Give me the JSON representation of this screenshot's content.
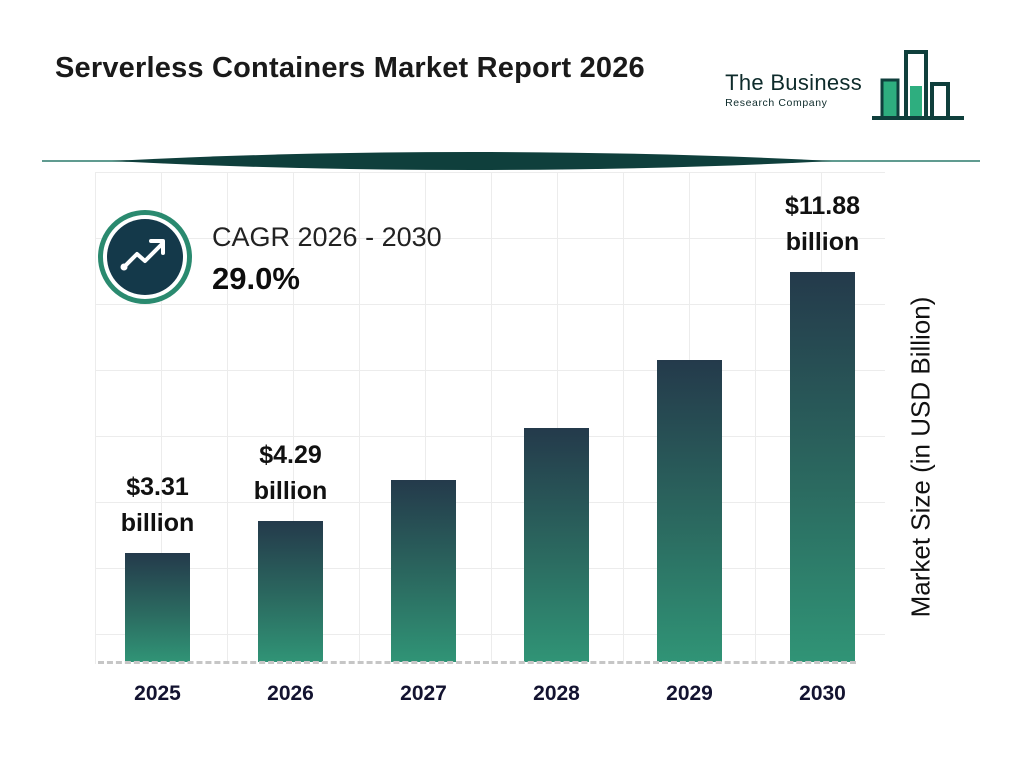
{
  "header": {
    "title": "Serverless Containers Market Report 2026",
    "logo": {
      "line1": "The Business",
      "line2": "Research Company"
    }
  },
  "chart_data": {
    "type": "bar",
    "categories": [
      "2025",
      "2026",
      "2027",
      "2028",
      "2029",
      "2030"
    ],
    "values": [
      3.31,
      4.29,
      5.53,
      7.14,
      9.21,
      11.88
    ],
    "value_labels": [
      {
        "amount": "$3.31",
        "unit": "billion"
      },
      {
        "amount": "$4.29",
        "unit": "billion"
      },
      null,
      null,
      null,
      {
        "amount": "$11.88",
        "unit": "billion"
      }
    ],
    "annotation": {
      "label": "CAGR 2026 - 2030",
      "value": "29.0%"
    },
    "xlabel": "",
    "ylabel": "Market Size (in USD Billion)",
    "ylim": [
      0,
      12.5
    ],
    "grid": true,
    "legend": "none"
  },
  "colors": {
    "teal_dark": "#0f3f3c",
    "teal_ring": "#2a8a6f",
    "badge_fill": "#14394a",
    "green_accent": "#2eae7f",
    "bar_top": "#243a4b",
    "bar_bottom": "#309476",
    "grid_line": "#ececec",
    "dashed_axis": "#c6c6c6"
  },
  "icons": {
    "trend_arrow": "zigzag-up-arrow",
    "logo_mark": "outlined-bar-chart"
  }
}
